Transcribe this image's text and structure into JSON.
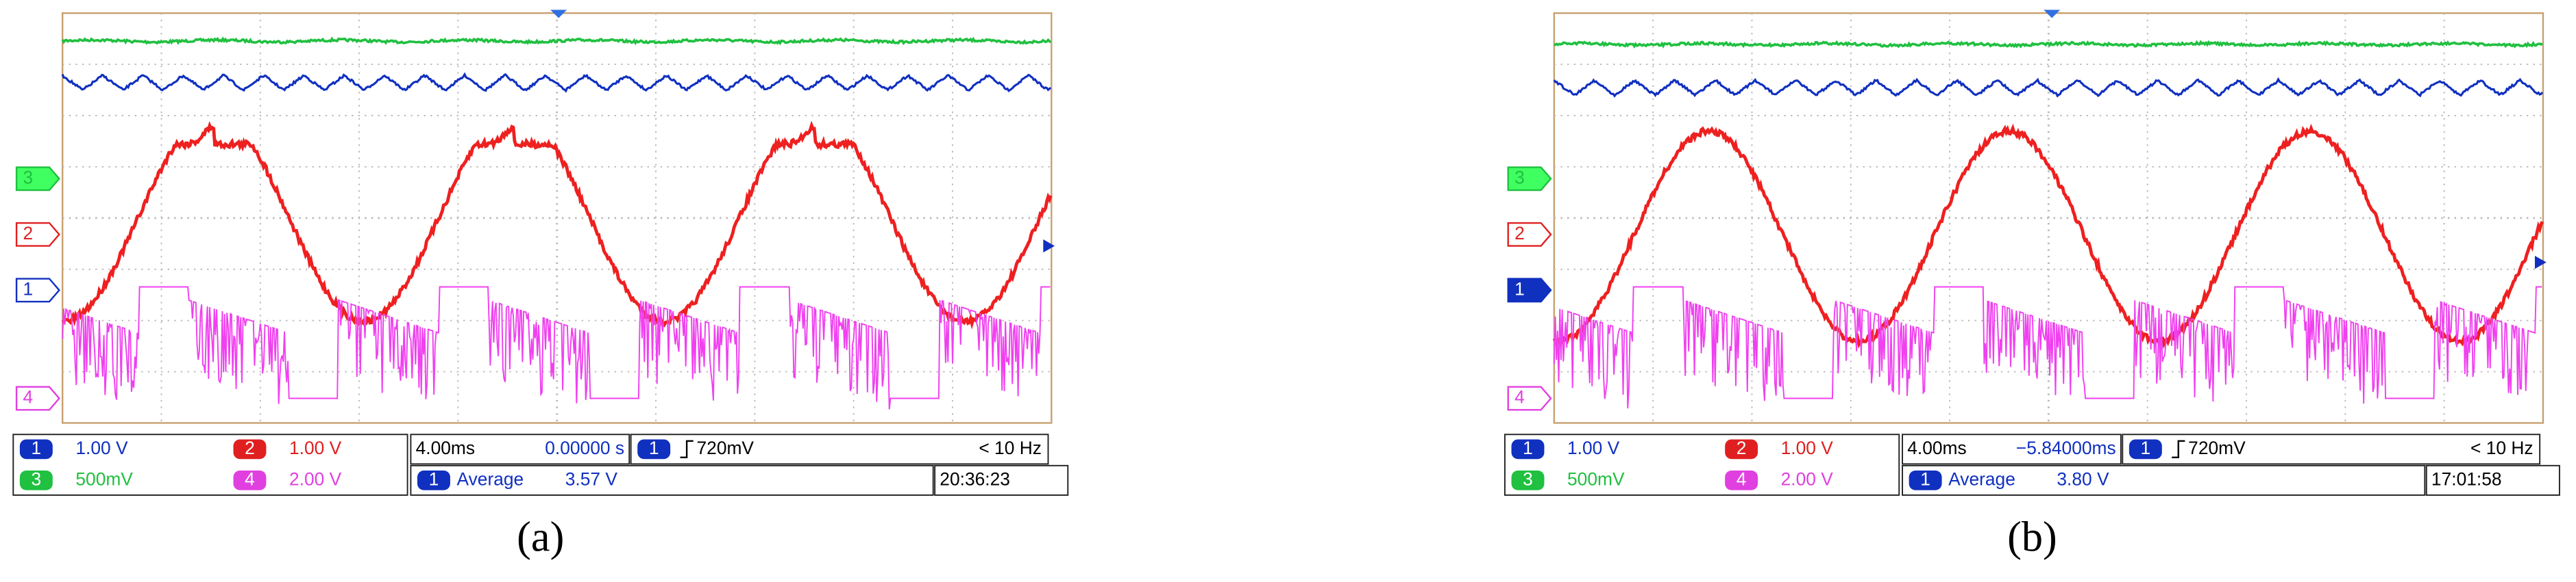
{
  "panels": [
    {
      "label": "(a)",
      "channels": [
        {
          "marker": "1",
          "scale": "1.00 V"
        },
        {
          "marker": "2",
          "scale": "1.00 V"
        },
        {
          "marker": "3",
          "scale": "500mV"
        },
        {
          "marker": "4",
          "scale": "2.00 V"
        }
      ],
      "timebase": "4.00ms",
      "delay": "0.00000 s",
      "trigger_channel": "1",
      "trigger_level": "720mV",
      "trigger_freq": "< 10 Hz",
      "measure_channel": "1",
      "measure_name": "Average",
      "measure_value": "3.57 V",
      "time": "20:36:23"
    },
    {
      "label": "(b)",
      "channels": [
        {
          "marker": "1",
          "scale": "1.00 V"
        },
        {
          "marker": "2",
          "scale": "1.00 V"
        },
        {
          "marker": "3",
          "scale": "500mV"
        },
        {
          "marker": "4",
          "scale": "2.00 V"
        }
      ],
      "timebase": "4.00ms",
      "delay": "−5.84000ms",
      "trigger_channel": "1",
      "trigger_level": "720mV",
      "trigger_freq": "< 10 Hz",
      "measure_channel": "1",
      "measure_name": "Average",
      "measure_value": "3.80 V",
      "time": "17:01:58"
    }
  ]
}
